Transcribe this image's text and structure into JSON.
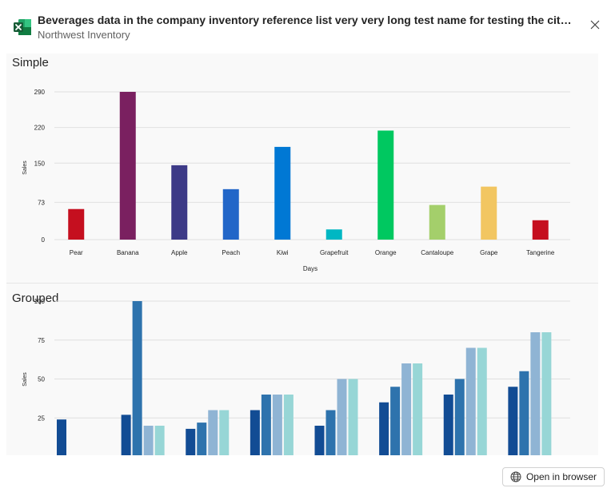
{
  "header": {
    "title": "Beverages data in the company inventory reference list very very long test name for testing the citation...",
    "subtitle": "Northwest Inventory",
    "app_icon": "excel-icon",
    "close_icon": "close-icon"
  },
  "footer": {
    "open_label": "Open in browser",
    "open_icon": "globe-icon"
  },
  "chart_data": [
    {
      "type": "bar",
      "title": "Simple",
      "xlabel": "Days",
      "ylabel": "Sales",
      "categories": [
        "Pear",
        "Banana",
        "Apple",
        "Peach",
        "Kiwi",
        "Grapefruit",
        "Orange",
        "Cantaloupe",
        "Grape",
        "Tangerine"
      ],
      "values": [
        60,
        290,
        146,
        99,
        182,
        20,
        214,
        68,
        104,
        38
      ],
      "colors": [
        "#c50f1f",
        "#7a2060",
        "#3d3a87",
        "#2266c8",
        "#0078d4",
        "#00b7c3",
        "#00c860",
        "#a4cf6b",
        "#f2c661",
        "#c50f1f"
      ],
      "yticks": [
        0,
        73,
        150,
        220,
        290
      ],
      "ylim": [
        0,
        300
      ],
      "grid": true
    },
    {
      "type": "bar",
      "title": "Grouped",
      "ylabel": "Sales",
      "yticks": [
        25,
        50,
        75,
        100
      ],
      "ylim": [
        0,
        100
      ],
      "grid": true,
      "series_colors": [
        "#124c94",
        "#2e73ad",
        "#8fb4d4",
        "#97d6d6"
      ],
      "groups": [
        [
          24,
          0,
          0,
          0
        ],
        [
          27,
          100,
          20,
          20
        ],
        [
          18,
          22,
          30,
          30
        ],
        [
          30,
          40,
          40,
          40
        ],
        [
          20,
          30,
          50,
          50
        ],
        [
          35,
          45,
          60,
          60
        ],
        [
          40,
          50,
          70,
          70
        ],
        [
          45,
          55,
          80,
          80
        ]
      ]
    }
  ]
}
